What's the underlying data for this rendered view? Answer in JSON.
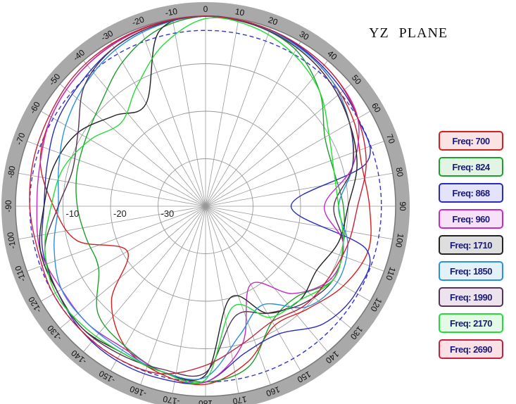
{
  "page": {
    "title": "YZ  PLANE"
  },
  "chart_data": {
    "type": "polar-line",
    "title": "YZ  PLANE",
    "radial_ticks": [
      "-10",
      "-20",
      "-30"
    ],
    "angle_ticks": [
      "0",
      "10",
      "20",
      "30",
      "40",
      "50",
      "60",
      "70",
      "80",
      "90",
      "100",
      "110",
      "120",
      "130",
      "140",
      "150",
      "160",
      "170",
      "180",
      "-170",
      "-160",
      "-150",
      "-140",
      "-130",
      "-120",
      "-110",
      "-100",
      "-90",
      "-80",
      "-70",
      "-60",
      "-50",
      "-40",
      "-30",
      "-20",
      "-10"
    ],
    "radial_range_db": [
      -40,
      0
    ],
    "reference_ring_db": -3,
    "grid": true,
    "legend_position": "right",
    "angles_deg": [
      -180,
      -165,
      -150,
      -135,
      -120,
      -105,
      -90,
      -75,
      -60,
      -45,
      -30,
      -15,
      0,
      15,
      30,
      45,
      60,
      75,
      90,
      105,
      120,
      135,
      150,
      165
    ],
    "series": [
      {
        "name": "Freq: 700",
        "color": "#d42020",
        "fill": "#fbe3e3",
        "values": [
          -2.5,
          -3.5,
          -6,
          -12,
          -21,
          -12,
          -8,
          -4,
          -2.5,
          -1.5,
          -0.8,
          -0.3,
          0,
          -0.3,
          -1,
          -2.5,
          -4,
          -6,
          -5.5,
          -4.5,
          -6.5,
          -9.5,
          -11,
          -6
        ]
      },
      {
        "name": "Freq: 824",
        "color": "#1e9e2c",
        "fill": "#e2f5e4",
        "values": [
          -3,
          -4,
          -6,
          -8,
          -14,
          -14,
          -13,
          -12,
          -11,
          -9,
          -5,
          -1.5,
          0,
          -0.5,
          -2,
          -6,
          -11,
          -12,
          -11,
          -10,
          -9,
          -13,
          -12,
          -5
        ]
      },
      {
        "name": "Freq: 868",
        "color": "#2a2ac0",
        "fill": "#e3e3fb",
        "values": [
          -3,
          -2.5,
          -2.5,
          -3,
          -4,
          -4.5,
          -6,
          -5.5,
          -4,
          -3,
          -1.5,
          -0.5,
          0,
          -0.5,
          -1,
          -2,
          -3,
          -5,
          -22,
          -5,
          -3.5,
          -5,
          -9,
          -8
        ]
      },
      {
        "name": "Freq: 960",
        "color": "#c42ac4",
        "fill": "#f8e1f8",
        "values": [
          -3,
          -4,
          -5.5,
          -5,
          -5,
          -4,
          -4.5,
          -4,
          -2.5,
          -1.5,
          -0.7,
          -0.2,
          0,
          -0.3,
          -0.8,
          -1.5,
          -3,
          -8,
          -15,
          -10,
          -9.5,
          -14,
          -21,
          -10
        ]
      },
      {
        "name": "Freq: 1710",
        "color": "#222222",
        "fill": "#dedede",
        "values": [
          -4.5,
          -4,
          -4.5,
          -3.5,
          -4,
          -4,
          -6,
          -7,
          -9,
          -13,
          -15,
          -2,
          0,
          -0.5,
          -1.5,
          -3,
          -5,
          -7,
          -10,
          -11,
          -13,
          -12,
          -14,
          -20
        ]
      },
      {
        "name": "Freq: 1850",
        "color": "#2a90e0",
        "fill": "#e3f1fb",
        "values": [
          -4,
          -4,
          -5,
          -5,
          -5,
          -7,
          -9,
          -8,
          -6,
          -4,
          -2,
          -0.7,
          0,
          -0.4,
          -1.2,
          -2.5,
          -5,
          -8,
          -12,
          -9,
          -8,
          -10,
          -16,
          -12
        ]
      },
      {
        "name": "Freq: 1990",
        "color": "#553355",
        "fill": "#ece3ec",
        "values": [
          -5,
          -4.5,
          -4,
          -3.5,
          -4,
          -5,
          -9,
          -11,
          -9,
          -4,
          -1.5,
          -0.5,
          0,
          -0.5,
          -1.5,
          -3,
          -5,
          -8,
          -13,
          -10,
          -9,
          -11,
          -14,
          -16
        ]
      },
      {
        "name": "Freq: 2170",
        "color": "#22dd33",
        "fill": "#e3fbe6",
        "values": [
          -3.5,
          -4,
          -4.5,
          -4,
          -3.5,
          -5,
          -7.5,
          -9,
          -12,
          -15,
          -11,
          -5,
          -0.5,
          -1,
          -3,
          -6,
          -10,
          -12,
          -12,
          -10,
          -9,
          -12,
          -13,
          -18
        ]
      },
      {
        "name": "Freq: 2690",
        "color": "#c8203a",
        "fill": "#fbe1e5",
        "values": [
          -6.5,
          -3.5,
          -3,
          -3,
          -3,
          -3.5,
          -3,
          -2.5,
          -2,
          -1,
          -0.5,
          -0.2,
          0,
          -0.3,
          -0.8,
          -1.5,
          -3,
          -5,
          -8,
          -9,
          -10,
          -10.5,
          -12,
          -10
        ]
      }
    ]
  }
}
